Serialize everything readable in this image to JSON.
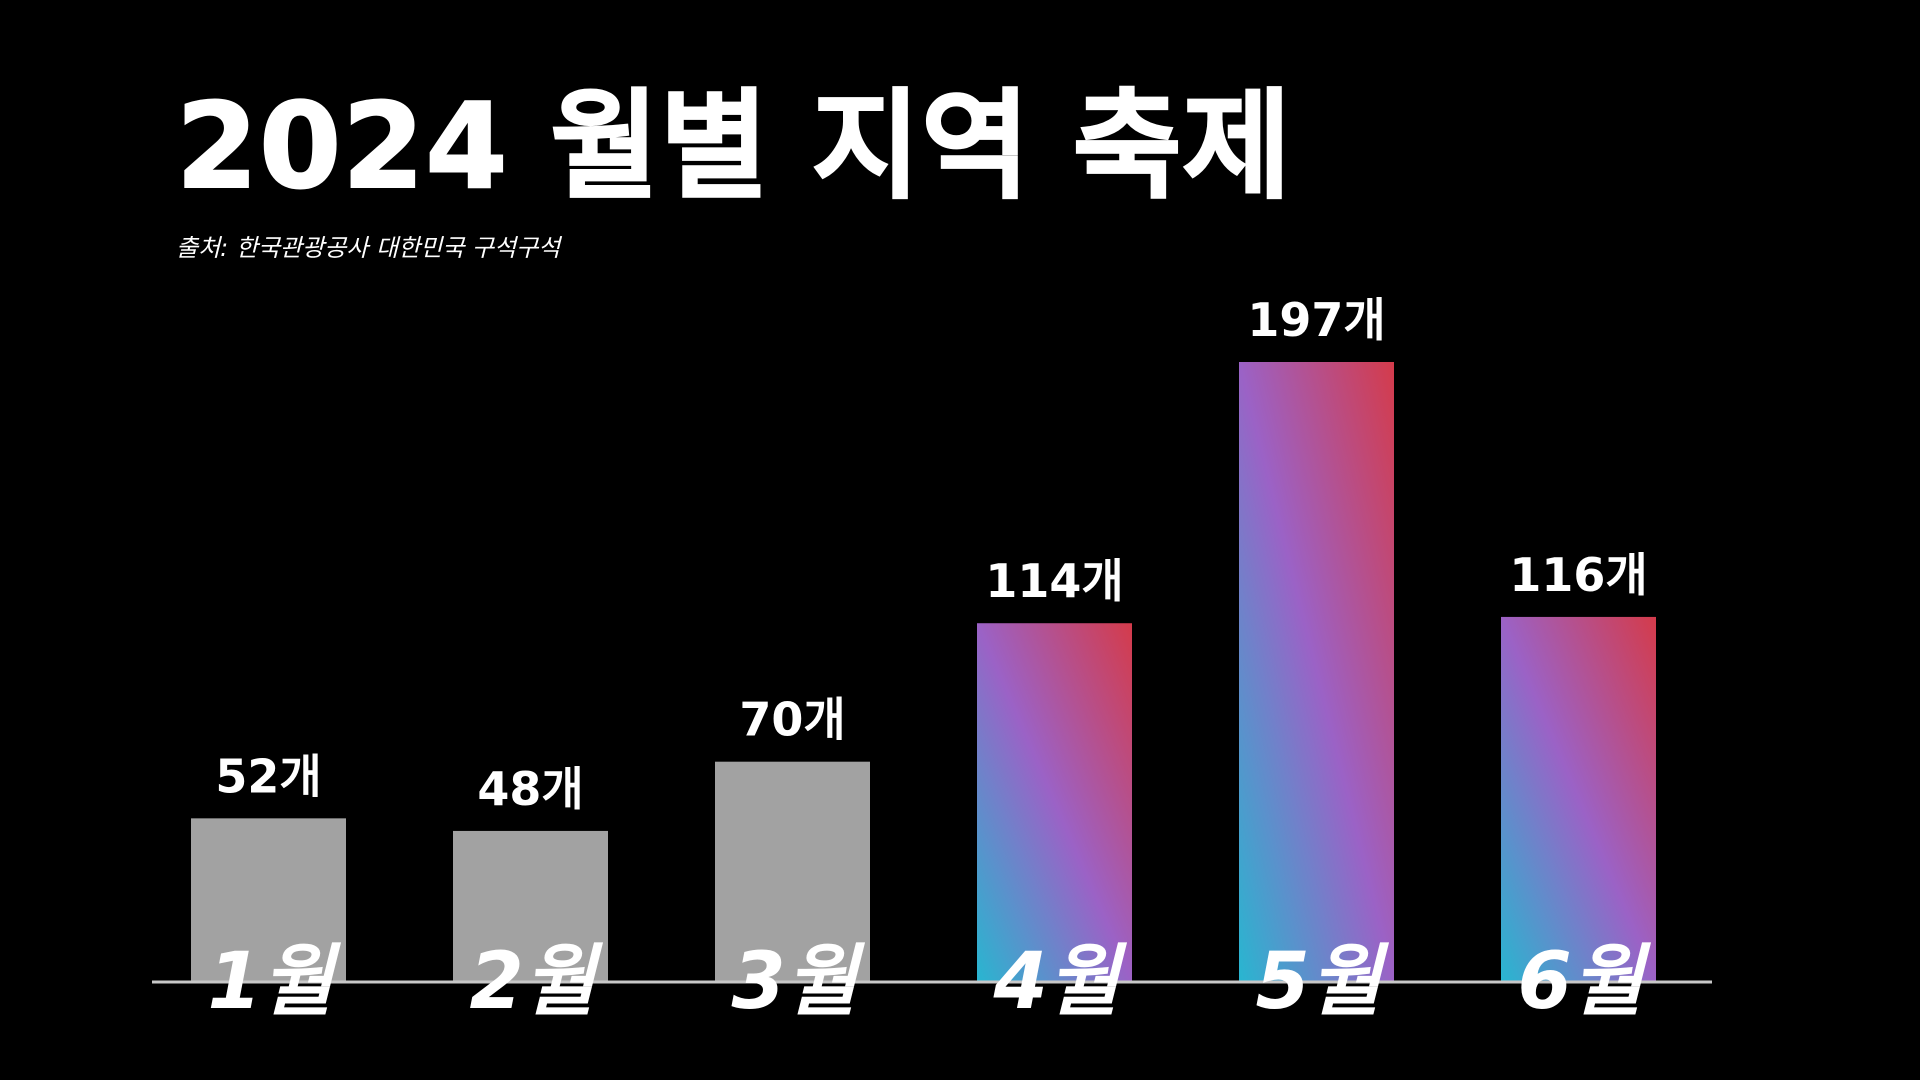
{
  "title": "2024 월별 지역 축제",
  "source": "출처: 한국관광공사 대한민국 구석구석",
  "chart_data": {
    "type": "bar",
    "title": "2024 월별 지역 축제",
    "categories": [
      "1월",
      "2월",
      "3월",
      "4월",
      "5월",
      "6월"
    ],
    "values": [
      52,
      48,
      70,
      114,
      197,
      116
    ],
    "data_labels": [
      "52개",
      "48개",
      "70개",
      "114개",
      "197개",
      "116개"
    ],
    "highlighted": [
      false,
      false,
      false,
      true,
      true,
      true
    ],
    "xlabel": "",
    "ylabel": "",
    "ylim": [
      0,
      197
    ],
    "grid": false,
    "legend": "none"
  },
  "colors": {
    "background": "#000000",
    "text": "#ffffff",
    "bar_plain": "#a2a2a2",
    "axis": "#c8c8c8",
    "gradient_start": "#28b6d0",
    "gradient_mid": "#9b62c6",
    "gradient_end": "#d43b4b"
  }
}
